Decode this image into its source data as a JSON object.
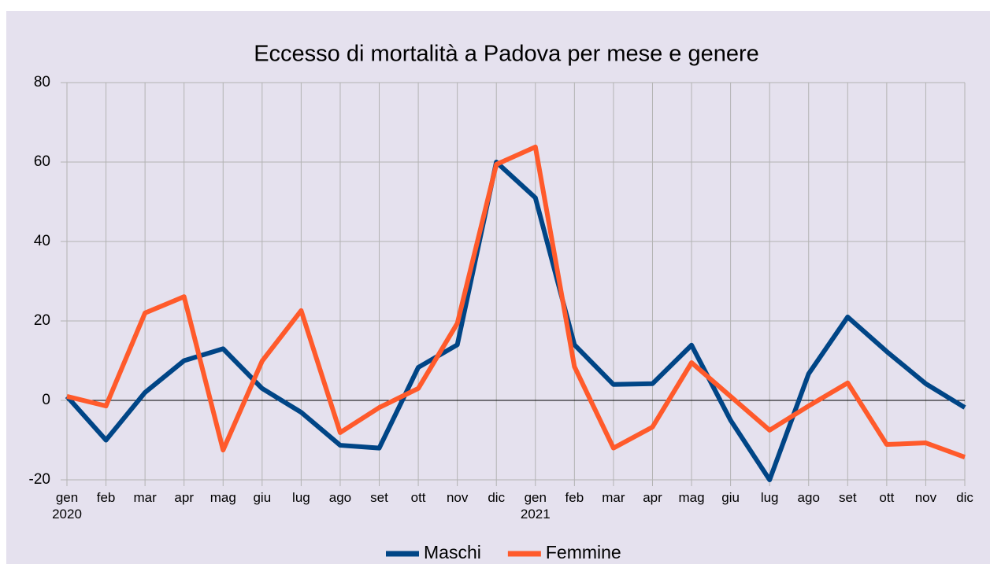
{
  "chart_data": {
    "type": "line",
    "title": "Eccesso di mortalità a Padova per mese e genere",
    "categories": [
      "gen 2020",
      "feb",
      "mar",
      "apr",
      "mag",
      "giu",
      "lug",
      "ago",
      "set",
      "ott",
      "nov",
      "dic",
      "gen 2021",
      "feb",
      "mar",
      "apr",
      "mag",
      "giu",
      "lug",
      "ago",
      "set",
      "ott",
      "nov",
      "dic"
    ],
    "series": [
      {
        "name": "Maschi",
        "color": "#004586",
        "values": [
          1,
          -10,
          2,
          10,
          13,
          3,
          -3,
          -11.3,
          -12,
          8.3,
          14,
          60,
          51,
          14,
          4,
          4.2,
          13.9,
          -5,
          -20,
          6.7,
          21,
          12.3,
          4.2,
          -1.8
        ]
      },
      {
        "name": "Femmine",
        "color": "#ff5a2b",
        "values": [
          1,
          -1.4,
          22,
          26.1,
          -12.5,
          9.9,
          22.6,
          -8.1,
          -1.8,
          3,
          19.4,
          59.4,
          63.8,
          8.5,
          -12,
          -6.7,
          9.5,
          1,
          -7.5,
          -1.4,
          4.4,
          -11.1,
          -10.7,
          -14.3
        ]
      }
    ],
    "ylim": [
      -20,
      80
    ],
    "yticks": [
      -20,
      0,
      20,
      40,
      60,
      80
    ],
    "grid": true,
    "legend": "bottom"
  }
}
